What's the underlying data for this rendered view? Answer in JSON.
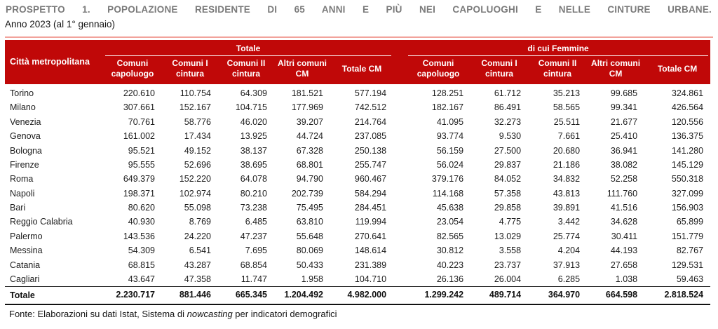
{
  "title": "PROSPETTO 1. POPOLAZIONE RESIDENTE DI 65 ANNI E PIÙ NEI CAPOLUOGHI E NELLE CINTURE URBANE.",
  "subtitle": "Anno 2023 (al 1° gennaio)",
  "colors": {
    "header_red": "#c00808",
    "top_rule_pink": "#f2a29b",
    "title_gray": "#7a7a7a"
  },
  "table": {
    "city_header": "Città metropolitana",
    "groups": [
      {
        "label": "Totale"
      },
      {
        "label": "di cui Femmine"
      }
    ],
    "columns": [
      "Comuni capoluogo",
      "Comuni I cintura",
      "Comuni II cintura",
      "Altri comuni CM",
      "Totale CM",
      "Comuni capoluogo",
      "Comuni I cintura",
      "Comuni II cintura",
      "Altri comuni CM",
      "Totale CM"
    ],
    "rows": [
      {
        "city": "Torino",
        "totale": [
          "220.610",
          "110.754",
          "64.309",
          "181.521",
          "577.194"
        ],
        "femmine": [
          "128.251",
          "61.712",
          "35.213",
          "99.685",
          "324.861"
        ]
      },
      {
        "city": "Milano",
        "totale": [
          "307.661",
          "152.167",
          "104.715",
          "177.969",
          "742.512"
        ],
        "femmine": [
          "182.167",
          "86.491",
          "58.565",
          "99.341",
          "426.564"
        ]
      },
      {
        "city": "Venezia",
        "totale": [
          "70.761",
          "58.776",
          "46.020",
          "39.207",
          "214.764"
        ],
        "femmine": [
          "41.095",
          "32.273",
          "25.511",
          "21.677",
          "120.556"
        ]
      },
      {
        "city": "Genova",
        "totale": [
          "161.002",
          "17.434",
          "13.925",
          "44.724",
          "237.085"
        ],
        "femmine": [
          "93.774",
          "9.530",
          "7.661",
          "25.410",
          "136.375"
        ]
      },
      {
        "city": "Bologna",
        "totale": [
          "95.521",
          "49.152",
          "38.137",
          "67.328",
          "250.138"
        ],
        "femmine": [
          "56.159",
          "27.500",
          "20.680",
          "36.941",
          "141.280"
        ]
      },
      {
        "city": "Firenze",
        "totale": [
          "95.555",
          "52.696",
          "38.695",
          "68.801",
          "255.747"
        ],
        "femmine": [
          "56.024",
          "29.837",
          "21.186",
          "38.082",
          "145.129"
        ]
      },
      {
        "city": "Roma",
        "totale": [
          "649.379",
          "152.220",
          "64.078",
          "94.790",
          "960.467"
        ],
        "femmine": [
          "379.176",
          "84.052",
          "34.832",
          "52.258",
          "550.318"
        ]
      },
      {
        "city": "Napoli",
        "totale": [
          "198.371",
          "102.974",
          "80.210",
          "202.739",
          "584.294"
        ],
        "femmine": [
          "114.168",
          "57.358",
          "43.813",
          "111.760",
          "327.099"
        ]
      },
      {
        "city": "Bari",
        "totale": [
          "80.620",
          "55.098",
          "73.238",
          "75.495",
          "284.451"
        ],
        "femmine": [
          "45.638",
          "29.858",
          "39.891",
          "41.516",
          "156.903"
        ]
      },
      {
        "city": "Reggio Calabria",
        "totale": [
          "40.930",
          "8.769",
          "6.485",
          "63.810",
          "119.994"
        ],
        "femmine": [
          "23.054",
          "4.775",
          "3.442",
          "34.628",
          "65.899"
        ]
      },
      {
        "city": "Palermo",
        "totale": [
          "143.536",
          "24.220",
          "47.237",
          "55.648",
          "270.641"
        ],
        "femmine": [
          "82.565",
          "13.029",
          "25.774",
          "30.411",
          "151.779"
        ]
      },
      {
        "city": "Messina",
        "totale": [
          "54.309",
          "6.541",
          "7.695",
          "80.069",
          "148.614"
        ],
        "femmine": [
          "30.812",
          "3.558",
          "4.204",
          "44.193",
          "82.767"
        ]
      },
      {
        "city": "Catania",
        "totale": [
          "68.815",
          "43.287",
          "68.854",
          "50.433",
          "231.389"
        ],
        "femmine": [
          "40.223",
          "23.737",
          "37.913",
          "27.658",
          "129.531"
        ]
      },
      {
        "city": "Cagliari",
        "totale": [
          "43.647",
          "47.358",
          "11.747",
          "1.958",
          "104.710"
        ],
        "femmine": [
          "26.136",
          "26.004",
          "6.285",
          "1.038",
          "59.463"
        ]
      }
    ],
    "total_row": {
      "city": "Totale",
      "totale": [
        "2.230.717",
        "881.446",
        "665.345",
        "1.204.492",
        "4.982.000"
      ],
      "femmine": [
        "1.299.242",
        "489.714",
        "364.970",
        "664.598",
        "2.818.524"
      ]
    }
  },
  "footer": {
    "prefix": "Fonte: Elaborazioni su dati Istat, Sistema di ",
    "italic": "nowcasting",
    "suffix": " per indicatori demografici"
  }
}
